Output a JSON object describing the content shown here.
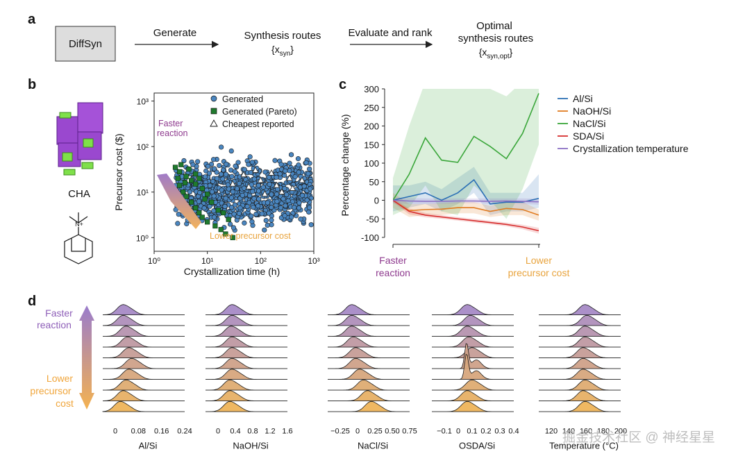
{
  "panel_labels": {
    "a": "a",
    "b": "b",
    "c": "c",
    "d": "d"
  },
  "panel_a": {
    "box_label": "DiffSyn",
    "generate": "Generate",
    "routes_title": "Synthesis routes",
    "routes_symbol": "{x",
    "routes_sub": "syn",
    "evaluate": "Evaluate and rank",
    "optimal_line1": "Optimal",
    "optimal_line2": "synthesis routes",
    "optimal_symbol": "{x",
    "optimal_sub": "syn,opt"
  },
  "panel_b": {
    "zeolite_label": "CHA",
    "osda_charge": "N+",
    "faster_line1": "Faster",
    "faster_line2": "reaction",
    "lower_label": "Lower precursor cost",
    "colors": {
      "generated": "#4a86c0",
      "pareto": "#1f7a2e",
      "cheapest_edge": "#333333"
    }
  },
  "panel_c": {
    "left_label_line1": "Faster",
    "left_label_line2": "reaction",
    "right_label_line1": "Lower",
    "right_label_line2": "precursor cost",
    "faster_color": "#8e3a8e",
    "lower_color": "#e8a33c"
  },
  "panel_d": {
    "faster_line1": "Faster",
    "faster_line2": "reaction",
    "lower_line1": "Lower",
    "lower_line2": "precursor",
    "lower_line3": "cost",
    "watermark": "掘金技术社区 @ 神经星星"
  },
  "chart_data": [
    {
      "type": "scatter",
      "panel": "b",
      "xlabel": "Crystallization time (h)",
      "ylabel": "Precursor cost ($)",
      "xscale": "log",
      "yscale": "log",
      "xlim": [
        1,
        1000
      ],
      "ylim": [
        0.5,
        1500
      ],
      "xticks": [
        "10⁰",
        "10¹",
        "10²",
        "10³"
      ],
      "yticks": [
        "10⁰",
        "10¹",
        "10²",
        "10³"
      ],
      "legend": [
        "Generated",
        "Generated (Pareto)",
        "Cheapest reported"
      ],
      "legend_position": "top-right",
      "series": [
        {
          "name": "Generated",
          "marker": "circle",
          "x_range": [
            2.5,
            900
          ],
          "y_range": [
            1,
            110
          ]
        },
        {
          "name": "Generated (Pareto)",
          "marker": "square",
          "points": [
            [
              2.5,
              35
            ],
            [
              2.8,
              20
            ],
            [
              3,
              14
            ],
            [
              3.5,
              10
            ],
            [
              4,
              8
            ],
            [
              5,
              6
            ],
            [
              6,
              4.5
            ],
            [
              7,
              3.5
            ],
            [
              8,
              2.8
            ],
            [
              10,
              2.2
            ],
            [
              14,
              1.8
            ],
            [
              18,
              1.5
            ],
            [
              22,
              1.2
            ],
            [
              30,
              1
            ],
            [
              3,
              28
            ],
            [
              4,
              22
            ],
            [
              5,
              18
            ],
            [
              6,
              15
            ],
            [
              8,
              12
            ],
            [
              10,
              9
            ],
            [
              3.2,
              40
            ],
            [
              4.5,
              32
            ],
            [
              6,
              25
            ],
            [
              7,
              20
            ],
            [
              12,
              6
            ],
            [
              16,
              4
            ],
            [
              20,
              3.5
            ],
            [
              25,
              2.5
            ],
            [
              9,
              7
            ],
            [
              3.8,
              16
            ]
          ]
        },
        {
          "name": "Cheapest reported",
          "marker": "triangle",
          "points": [
            [
              30,
              15
            ],
            [
              48,
              24
            ],
            [
              60,
              13
            ],
            [
              80,
              30
            ],
            [
              100,
              18
            ],
            [
              160,
              26
            ],
            [
              200,
              14
            ],
            [
              350,
              20
            ],
            [
              400,
              12
            ],
            [
              600,
              18
            ],
            [
              250,
              10
            ],
            [
              120,
              9
            ]
          ]
        }
      ]
    },
    {
      "type": "line",
      "panel": "c",
      "ylabel": "Percentage change (%)",
      "ylim": [
        -100,
        300
      ],
      "yticks": [
        -100,
        -50,
        0,
        50,
        100,
        150,
        200,
        250,
        300
      ],
      "legend_position": "right",
      "x": [
        0,
        1,
        2,
        3,
        4,
        5,
        6,
        7,
        8,
        9
      ],
      "series": [
        {
          "name": "Al/Si",
          "color": "#2b6fb5",
          "values": [
            0,
            10,
            20,
            0,
            20,
            55,
            -10,
            -5,
            -5,
            5
          ],
          "band": [
            [
              -30,
              40
            ],
            [
              -20,
              40
            ],
            [
              -10,
              50
            ],
            [
              -30,
              30
            ],
            [
              -10,
              60
            ],
            [
              20,
              90
            ],
            [
              -40,
              20
            ],
            [
              -30,
              20
            ],
            [
              -30,
              20
            ],
            [
              -20,
              70
            ]
          ]
        },
        {
          "name": "NaOH/Si",
          "color": "#e07a1f",
          "values": [
            0,
            -28,
            -25,
            -24,
            -20,
            -20,
            -30,
            -22,
            -25,
            -40
          ],
          "band": [
            [
              -20,
              20
            ],
            [
              -45,
              -10
            ],
            [
              -40,
              -10
            ],
            [
              -40,
              -8
            ],
            [
              -35,
              -5
            ],
            [
              -35,
              -5
            ],
            [
              -45,
              -15
            ],
            [
              -40,
              -5
            ],
            [
              -40,
              -5
            ],
            [
              -55,
              -25
            ]
          ]
        },
        {
          "name": "NaCl/Si",
          "color": "#3aa63a",
          "values": [
            0,
            70,
            168,
            108,
            102,
            172,
            145,
            112,
            180,
            288
          ],
          "band": [
            [
              -40,
              60
            ],
            [
              -20,
              200
            ],
            [
              40,
              320
            ],
            [
              -30,
              320
            ],
            [
              -40,
              320
            ],
            [
              40,
              300
            ],
            [
              0,
              300
            ],
            [
              -50,
              280
            ],
            [
              30,
              320
            ],
            [
              150,
              320
            ]
          ]
        },
        {
          "name": "SDA/Si",
          "color": "#d62d2d",
          "values": [
            0,
            -30,
            -40,
            -45,
            -50,
            -55,
            -60,
            -65,
            -72,
            -82
          ],
          "band": [
            [
              -5,
              5
            ],
            [
              -38,
              -22
            ],
            [
              -46,
              -34
            ],
            [
              -50,
              -40
            ],
            [
              -55,
              -45
            ],
            [
              -60,
              -50
            ],
            [
              -65,
              -55
            ],
            [
              -70,
              -60
            ],
            [
              -78,
              -66
            ],
            [
              -90,
              -74
            ]
          ]
        },
        {
          "name": "Crystallization temperature",
          "color": "#8a6fc4",
          "values": [
            0,
            -2,
            -3,
            -3,
            -2,
            -2,
            -3,
            -2,
            -3,
            -4
          ],
          "band": [
            [
              -8,
              8
            ],
            [
              -10,
              6
            ],
            [
              -10,
              5
            ],
            [
              -10,
              5
            ],
            [
              -8,
              5
            ],
            [
              -8,
              5
            ],
            [
              -10,
              5
            ],
            [
              -8,
              5
            ],
            [
              -10,
              5
            ],
            [
              -12,
              4
            ]
          ]
        }
      ]
    },
    {
      "type": "area",
      "panel": "d",
      "subtype": "ridgeline",
      "rows": 10,
      "row_color_top": "#a78bc7",
      "row_color_bottom": "#efb55a",
      "charts": [
        {
          "xlabel": "Al/Si",
          "xticks": [
            "0",
            "0.08",
            "0.16",
            "0.24"
          ],
          "xlim": [
            -0.04,
            0.25
          ],
          "peaks": [
            0.03,
            0.03,
            0.04,
            0.045,
            0.05,
            0.06,
            0.05,
            0.04,
            0.03,
            0.02
          ]
        },
        {
          "xlabel": "NaOH/Si",
          "xticks": [
            "0",
            "0.4",
            "0.8",
            "1.2",
            "1.6"
          ],
          "xlim": [
            -0.3,
            1.6
          ],
          "peaks": [
            0.3,
            0.3,
            0.28,
            0.3,
            0.3,
            0.3,
            0.3,
            0.25,
            0.25,
            0.25
          ]
        },
        {
          "xlabel": "NaCl/Si",
          "xticks": [
            "−0.25",
            "0",
            "0.25",
            "0.50",
            "0.75"
          ],
          "xlim": [
            -0.3,
            0.75
          ],
          "peaks": [
            0,
            0,
            0,
            0.02,
            0.05,
            0.05,
            0.1,
            0.15,
            0.2,
            0.25
          ]
        },
        {
          "xlabel": "OSDA/Si",
          "xticks": [
            "−0.1",
            "0",
            "0.1",
            "0.2",
            "0.3",
            "0.4"
          ],
          "xlim": [
            -0.12,
            0.4
          ],
          "peaks": [
            0.1,
            0.12,
            0.1,
            0.11,
            0.13,
            0.1,
            0.1,
            0.13,
            0.1,
            0.1
          ]
        },
        {
          "xlabel": "Temperature (°C)",
          "xticks": [
            "120",
            "140",
            "160",
            "180",
            "200"
          ],
          "xlim": [
            110,
            200
          ],
          "peaks": [
            160,
            162,
            160,
            160,
            158,
            158,
            158,
            160,
            158,
            160
          ]
        }
      ]
    }
  ]
}
